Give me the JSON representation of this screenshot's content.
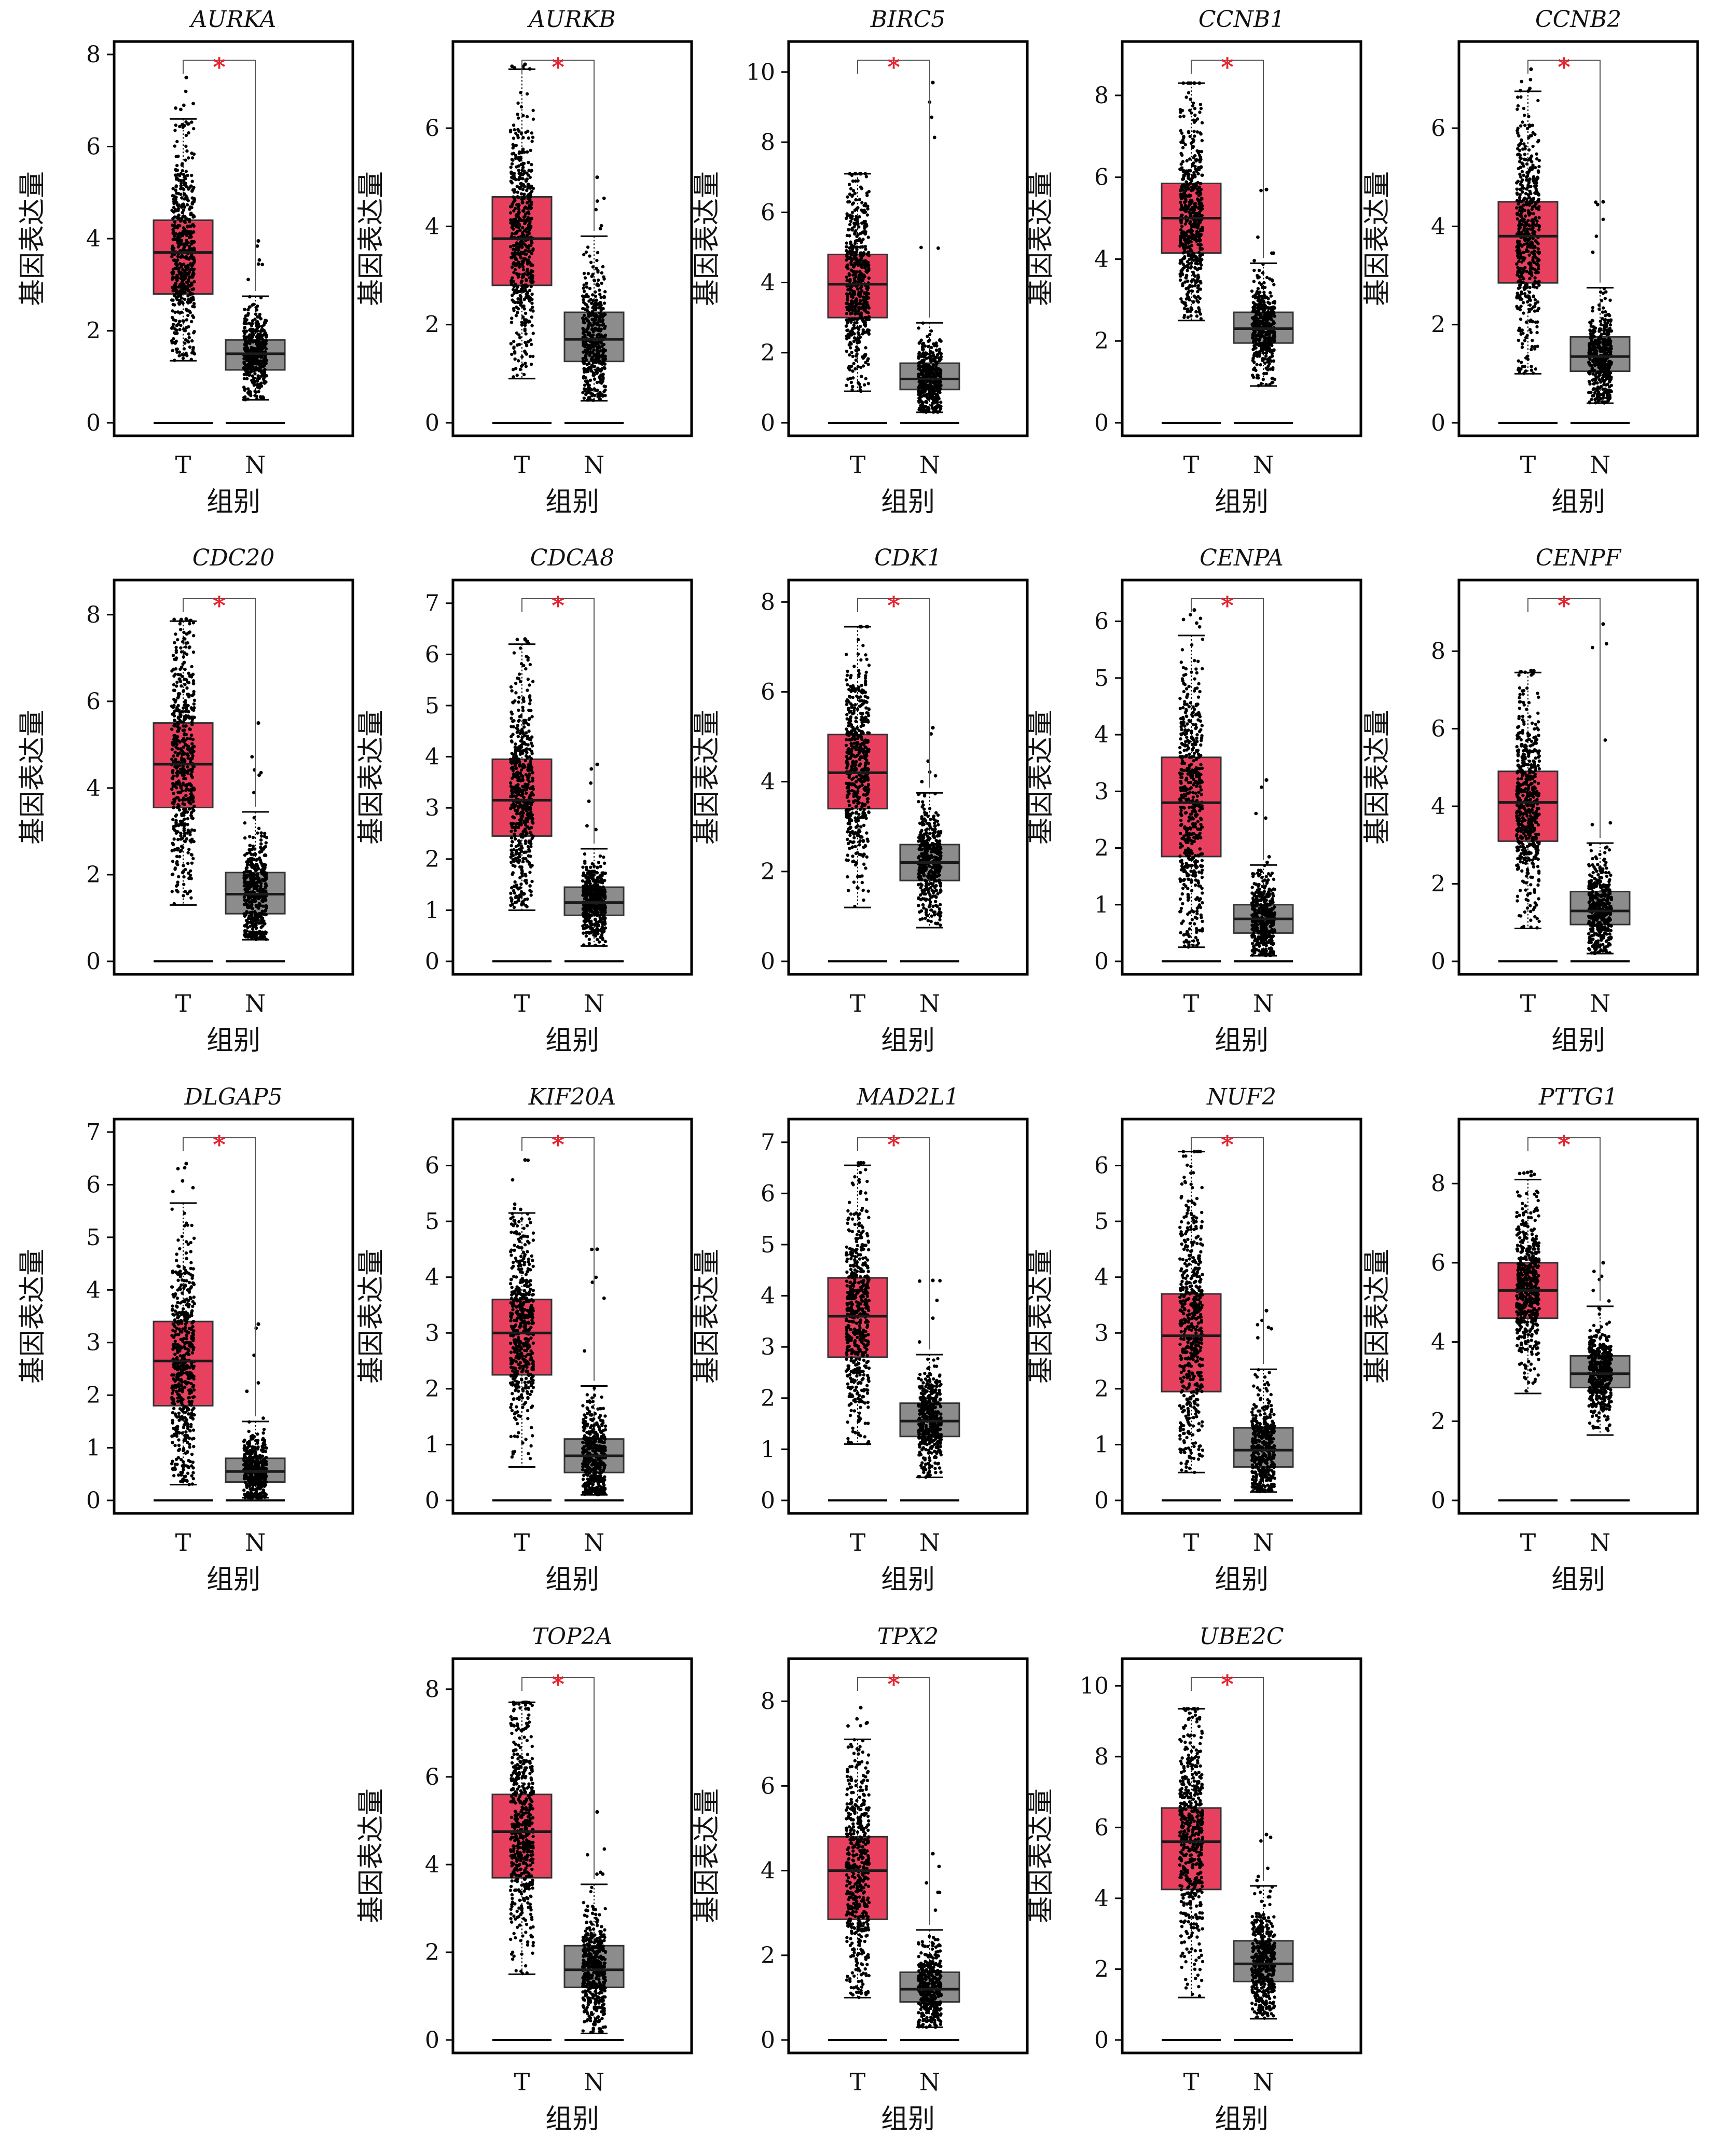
{
  "figure": {
    "group_labels": [
      "T",
      "N"
    ],
    "xlabel": "组别",
    "ylabel": "基因表达量",
    "significance_mark": "*",
    "colors": {
      "tumor": "#e8415f",
      "normal": "#8c8c8c",
      "points": "#000000",
      "mark": "#e8212d"
    }
  },
  "chart_data": [
    {
      "type": "box",
      "title": "AURKA",
      "ylim": [
        0,
        8
      ],
      "yticks": [
        0,
        2,
        4,
        6,
        8
      ],
      "series": [
        {
          "name": "T",
          "min": 1.35,
          "q1": 2.8,
          "median": 3.7,
          "q3": 4.4,
          "max": 6.6,
          "outlier_max": 7.5
        },
        {
          "name": "N",
          "min": 0.5,
          "q1": 1.15,
          "median": 1.5,
          "q3": 1.8,
          "max": 2.75,
          "outlier_max": 3.95
        }
      ]
    },
    {
      "type": "box",
      "title": "AURKB",
      "ylim": [
        0,
        7.5
      ],
      "yticks": [
        0,
        2,
        4,
        6
      ],
      "series": [
        {
          "name": "T",
          "min": 0.9,
          "q1": 2.8,
          "median": 3.75,
          "q3": 4.6,
          "max": 7.2,
          "outlier_max": 7.3
        },
        {
          "name": "N",
          "min": 0.45,
          "q1": 1.25,
          "median": 1.7,
          "q3": 2.25,
          "max": 3.8,
          "outlier_max": 5.0
        }
      ]
    },
    {
      "type": "box",
      "title": "BIRC5",
      "ylim": [
        0,
        10.5
      ],
      "yticks": [
        0,
        2,
        4,
        6,
        8,
        10
      ],
      "series": [
        {
          "name": "T",
          "min": 0.9,
          "q1": 3.0,
          "median": 3.95,
          "q3": 4.8,
          "max": 7.1,
          "outlier_max": 7.1
        },
        {
          "name": "N",
          "min": 0.3,
          "q1": 0.95,
          "median": 1.25,
          "q3": 1.7,
          "max": 2.85,
          "outlier_max": 9.7
        }
      ]
    },
    {
      "type": "box",
      "title": "CCNB1",
      "ylim": [
        0,
        9
      ],
      "yticks": [
        0,
        2,
        4,
        6,
        8
      ],
      "series": [
        {
          "name": "T",
          "min": 2.5,
          "q1": 4.15,
          "median": 5.0,
          "q3": 5.85,
          "max": 8.3,
          "outlier_max": 8.3
        },
        {
          "name": "N",
          "min": 0.9,
          "q1": 1.95,
          "median": 2.3,
          "q3": 2.7,
          "max": 3.9,
          "outlier_max": 5.7
        }
      ]
    },
    {
      "type": "box",
      "title": "CCNB2",
      "ylim": [
        0,
        7.5
      ],
      "yticks": [
        0,
        2,
        4,
        6
      ],
      "series": [
        {
          "name": "T",
          "min": 1.0,
          "q1": 2.85,
          "median": 3.8,
          "q3": 4.5,
          "max": 6.75,
          "outlier_max": 7.2
        },
        {
          "name": "N",
          "min": 0.4,
          "q1": 1.05,
          "median": 1.35,
          "q3": 1.75,
          "max": 2.75,
          "outlier_max": 4.5
        }
      ]
    },
    {
      "type": "box",
      "title": "CDC20",
      "ylim": [
        0,
        8.5
      ],
      "yticks": [
        0,
        2,
        4,
        6,
        8
      ],
      "series": [
        {
          "name": "T",
          "min": 1.3,
          "q1": 3.55,
          "median": 4.55,
          "q3": 5.5,
          "max": 7.85,
          "outlier_max": 7.9
        },
        {
          "name": "N",
          "min": 0.5,
          "q1": 1.1,
          "median": 1.55,
          "q3": 2.05,
          "max": 3.45,
          "outlier_max": 5.5
        }
      ]
    },
    {
      "type": "box",
      "title": "CDCA8",
      "ylim": [
        0,
        7.2
      ],
      "yticks": [
        0,
        1,
        2,
        3,
        4,
        5,
        6,
        7
      ],
      "series": [
        {
          "name": "T",
          "min": 1.0,
          "q1": 2.45,
          "median": 3.15,
          "q3": 3.95,
          "max": 6.2,
          "outlier_max": 6.3
        },
        {
          "name": "N",
          "min": 0.3,
          "q1": 0.9,
          "median": 1.15,
          "q3": 1.45,
          "max": 2.2,
          "outlier_max": 3.85
        }
      ]
    },
    {
      "type": "box",
      "title": "CDK1",
      "ylim": [
        0,
        8.2
      ],
      "yticks": [
        0,
        2,
        4,
        6,
        8
      ],
      "series": [
        {
          "name": "T",
          "min": 1.2,
          "q1": 3.4,
          "median": 4.2,
          "q3": 5.05,
          "max": 7.45,
          "outlier_max": 7.45
        },
        {
          "name": "N",
          "min": 0.75,
          "q1": 1.8,
          "median": 2.2,
          "q3": 2.6,
          "max": 3.75,
          "outlier_max": 5.2
        }
      ]
    },
    {
      "type": "box",
      "title": "CENPA",
      "ylim": [
        0,
        6.5
      ],
      "yticks": [
        0,
        1,
        2,
        3,
        4,
        5,
        6
      ],
      "series": [
        {
          "name": "T",
          "min": 0.25,
          "q1": 1.85,
          "median": 2.8,
          "q3": 3.6,
          "max": 5.75,
          "outlier_max": 6.2
        },
        {
          "name": "N",
          "min": 0.1,
          "q1": 0.5,
          "median": 0.75,
          "q3": 1.0,
          "max": 1.7,
          "outlier_max": 3.2
        }
      ]
    },
    {
      "type": "box",
      "title": "CENPF",
      "ylim": [
        0,
        9.5
      ],
      "yticks": [
        0,
        2,
        4,
        6,
        8
      ],
      "series": [
        {
          "name": "T",
          "min": 0.85,
          "q1": 3.1,
          "median": 4.1,
          "q3": 4.9,
          "max": 7.45,
          "outlier_max": 7.5
        },
        {
          "name": "N",
          "min": 0.2,
          "q1": 0.95,
          "median": 1.3,
          "q3": 1.8,
          "max": 3.05,
          "outlier_max": 8.7
        }
      ]
    },
    {
      "type": "box",
      "title": "DLGAP5",
      "ylim": [
        0,
        7
      ],
      "yticks": [
        0,
        1,
        2,
        3,
        4,
        5,
        6,
        7
      ],
      "series": [
        {
          "name": "T",
          "min": 0.3,
          "q1": 1.8,
          "median": 2.65,
          "q3": 3.4,
          "max": 5.65,
          "outlier_max": 6.4
        },
        {
          "name": "N",
          "min": 0.05,
          "q1": 0.35,
          "median": 0.55,
          "q3": 0.8,
          "max": 1.5,
          "outlier_max": 3.35
        }
      ]
    },
    {
      "type": "box",
      "title": "KIF20A",
      "ylim": [
        0,
        6.6
      ],
      "yticks": [
        0,
        1,
        2,
        3,
        4,
        5,
        6
      ],
      "series": [
        {
          "name": "T",
          "min": 0.6,
          "q1": 2.25,
          "median": 3.0,
          "q3": 3.6,
          "max": 5.15,
          "outlier_max": 6.1
        },
        {
          "name": "N",
          "min": 0.1,
          "q1": 0.5,
          "median": 0.8,
          "q3": 1.1,
          "max": 2.05,
          "outlier_max": 4.5
        }
      ]
    },
    {
      "type": "box",
      "title": "MAD2L1",
      "ylim": [
        0,
        7.2
      ],
      "yticks": [
        0,
        1,
        2,
        3,
        4,
        5,
        6,
        7
      ],
      "series": [
        {
          "name": "T",
          "min": 1.1,
          "q1": 2.8,
          "median": 3.6,
          "q3": 4.35,
          "max": 6.55,
          "outlier_max": 6.6
        },
        {
          "name": "N",
          "min": 0.45,
          "q1": 1.25,
          "median": 1.55,
          "q3": 1.9,
          "max": 2.85,
          "outlier_max": 4.3
        }
      ]
    },
    {
      "type": "box",
      "title": "NUF2",
      "ylim": [
        0,
        6.6
      ],
      "yticks": [
        0,
        1,
        2,
        3,
        4,
        5,
        6
      ],
      "series": [
        {
          "name": "T",
          "min": 0.5,
          "q1": 1.95,
          "median": 2.95,
          "q3": 3.7,
          "max": 6.25,
          "outlier_max": 6.25
        },
        {
          "name": "N",
          "min": 0.15,
          "q1": 0.6,
          "median": 0.9,
          "q3": 1.3,
          "max": 2.35,
          "outlier_max": 3.4
        }
      ]
    },
    {
      "type": "box",
      "title": "PTTG1",
      "ylim": [
        0,
        9.3
      ],
      "yticks": [
        0,
        2,
        4,
        6,
        8
      ],
      "series": [
        {
          "name": "T",
          "min": 2.7,
          "q1": 4.6,
          "median": 5.3,
          "q3": 6.0,
          "max": 8.1,
          "outlier_max": 8.3
        },
        {
          "name": "N",
          "min": 1.65,
          "q1": 2.85,
          "median": 3.2,
          "q3": 3.65,
          "max": 4.9,
          "outlier_max": 6.0
        }
      ]
    },
    {
      "type": "box",
      "title": "TOP2A",
      "ylim": [
        0,
        8.4
      ],
      "yticks": [
        0,
        2,
        4,
        6,
        8
      ],
      "series": [
        {
          "name": "T",
          "min": 1.5,
          "q1": 3.7,
          "median": 4.75,
          "q3": 5.6,
          "max": 7.7,
          "outlier_max": 7.7
        },
        {
          "name": "N",
          "min": 0.15,
          "q1": 1.2,
          "median": 1.6,
          "q3": 2.15,
          "max": 3.55,
          "outlier_max": 5.2
        }
      ]
    },
    {
      "type": "box",
      "title": "TPX2",
      "ylim": [
        0,
        8.7
      ],
      "yticks": [
        0,
        2,
        4,
        6,
        8
      ],
      "series": [
        {
          "name": "T",
          "min": 1.0,
          "q1": 2.85,
          "median": 4.0,
          "q3": 4.8,
          "max": 7.1,
          "outlier_max": 7.85
        },
        {
          "name": "N",
          "min": 0.3,
          "q1": 0.9,
          "median": 1.2,
          "q3": 1.6,
          "max": 2.6,
          "outlier_max": 4.4
        }
      ]
    },
    {
      "type": "box",
      "title": "UBE2C",
      "ylim": [
        0,
        10.4
      ],
      "yticks": [
        0,
        2,
        4,
        6,
        8,
        10
      ],
      "series": [
        {
          "name": "T",
          "min": 1.2,
          "q1": 4.25,
          "median": 5.6,
          "q3": 6.55,
          "max": 9.35,
          "outlier_max": 9.35
        },
        {
          "name": "N",
          "min": 0.6,
          "q1": 1.65,
          "median": 2.15,
          "q3": 2.8,
          "max": 4.35,
          "outlier_max": 5.8
        }
      ]
    }
  ]
}
